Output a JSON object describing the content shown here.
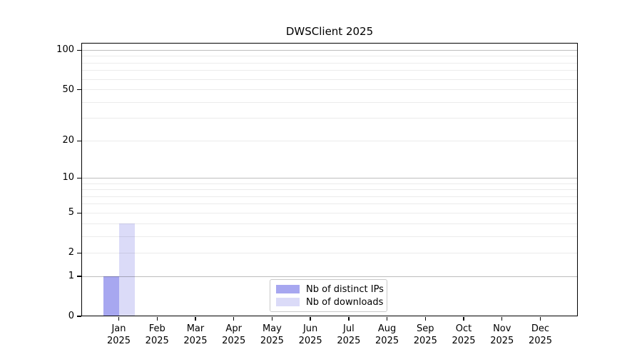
{
  "chart_data": {
    "type": "bar",
    "title": "DWSClient 2025",
    "categories": [
      {
        "month": "Jan",
        "year": "2025"
      },
      {
        "month": "Feb",
        "year": "2025"
      },
      {
        "month": "Mar",
        "year": "2025"
      },
      {
        "month": "Apr",
        "year": "2025"
      },
      {
        "month": "May",
        "year": "2025"
      },
      {
        "month": "Jun",
        "year": "2025"
      },
      {
        "month": "Jul",
        "year": "2025"
      },
      {
        "month": "Aug",
        "year": "2025"
      },
      {
        "month": "Sep",
        "year": "2025"
      },
      {
        "month": "Oct",
        "year": "2025"
      },
      {
        "month": "Nov",
        "year": "2025"
      },
      {
        "month": "Dec",
        "year": "2025"
      }
    ],
    "series": [
      {
        "name": "Nb of distinct IPs",
        "color": "#a7a7f0",
        "values": [
          1,
          0,
          0,
          0,
          0,
          0,
          0,
          0,
          0,
          0,
          0,
          0
        ]
      },
      {
        "name": "Nb of downloads",
        "color": "#dbdbf8",
        "values": [
          4,
          0,
          0,
          0,
          0,
          0,
          0,
          0,
          0,
          0,
          0,
          0
        ]
      }
    ],
    "y_scale": "log1p",
    "ylim": [
      0,
      114
    ],
    "y_ticks": [
      0,
      1,
      2,
      5,
      10,
      20,
      50,
      100
    ],
    "grid_major_values": [
      1,
      10,
      100
    ],
    "grid_minor_values": [
      2,
      3,
      4,
      5,
      6,
      7,
      8,
      9,
      20,
      30,
      40,
      50,
      60,
      70,
      80,
      90
    ],
    "grid_on": true,
    "legend_position": "lower center",
    "xlabel": "",
    "ylabel": "",
    "colors": {
      "spine": "#000000",
      "grid_major": "rgba(0,0,0,0.26)",
      "grid_minor": "rgba(0,0,0,0.08)",
      "text": "#000000",
      "legend_border": "#c9c9c9",
      "background": "#ffffff"
    }
  }
}
